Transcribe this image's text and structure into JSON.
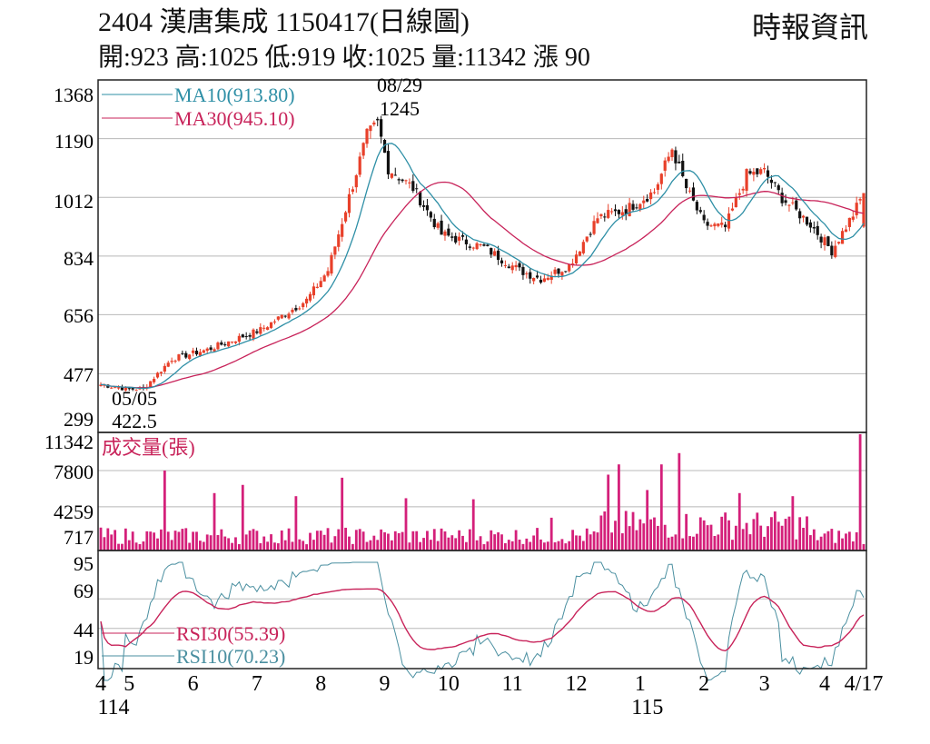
{
  "header": {
    "title": "2404  漢唐集成 1150417(日線圖)",
    "source": "時報資訊",
    "ohlc": "開:923 高:1025 低:919 收:1025 量:11342 漲 90"
  },
  "colors": {
    "up": "#e8402a",
    "down": "#111111",
    "ma10": "#2e8fa6",
    "ma30": "#c8235a",
    "volume": "#d4207a",
    "rsi10": "#4a8fa0",
    "rsi30": "#c8235a",
    "grid": "#b8b8b8"
  },
  "chart_data": [
    {
      "type": "candlestick",
      "panel": "price",
      "yticks": [
        "1368",
        "1190",
        "1012",
        "834",
        "656",
        "477",
        "299"
      ],
      "ylim": [
        299,
        1368
      ],
      "grid": true,
      "legend": [
        "MA10(913.80)",
        "MA30(945.10)"
      ],
      "annotations": [
        {
          "date": "08/29",
          "value": "1245",
          "label_lines": [
            "08/29",
            "1245"
          ]
        },
        {
          "date": "05/05",
          "value": "422.5",
          "label_lines": [
            "05/05",
            "422.5"
          ]
        }
      ],
      "anchors": [
        [
          0,
          444
        ],
        [
          8,
          430
        ],
        [
          12,
          432
        ],
        [
          20,
          522
        ],
        [
          30,
          550
        ],
        [
          45,
          610
        ],
        [
          58,
          700
        ],
        [
          64,
          790
        ],
        [
          71,
          1050
        ],
        [
          75,
          1200
        ],
        [
          78,
          1235
        ],
        [
          81,
          1100
        ],
        [
          88,
          1040
        ],
        [
          96,
          900
        ],
        [
          108,
          860
        ],
        [
          118,
          790
        ],
        [
          124,
          765
        ],
        [
          132,
          805
        ],
        [
          140,
          950
        ],
        [
          148,
          975
        ],
        [
          156,
          1030
        ],
        [
          161,
          1160
        ],
        [
          165,
          1040
        ],
        [
          170,
          930
        ],
        [
          176,
          920
        ],
        [
          182,
          1080
        ],
        [
          187,
          1090
        ],
        [
          192,
          1010
        ],
        [
          200,
          930
        ],
        [
          206,
          850
        ],
        [
          212,
          960
        ],
        [
          215,
          1025
        ]
      ],
      "series": [
        {
          "name": "MA10(913.80)",
          "last": 913.8
        },
        {
          "name": "MA30(945.10)",
          "last": 945.1
        }
      ],
      "last_candle": {
        "open": 923,
        "high": 1025,
        "low": 919,
        "close": 1025
      }
    },
    {
      "type": "bar",
      "panel": "volume",
      "title": "成交量(張)",
      "yticks": [
        "11342",
        "7800",
        "4259",
        "717"
      ],
      "ylim": [
        0,
        11342
      ],
      "spikes": [
        [
          18,
          7800
        ],
        [
          32,
          5600
        ],
        [
          40,
          6400
        ],
        [
          55,
          5300
        ],
        [
          68,
          7100
        ],
        [
          86,
          5100
        ],
        [
          105,
          5000
        ],
        [
          127,
          3200
        ],
        [
          143,
          7400
        ],
        [
          146,
          8400
        ],
        [
          154,
          5900
        ],
        [
          158,
          8400
        ],
        [
          163,
          9500
        ],
        [
          180,
          5600
        ],
        [
          195,
          5300
        ],
        [
          214,
          11342
        ]
      ]
    },
    {
      "type": "line",
      "panel": "rsi",
      "yticks": [
        "95",
        "69",
        "44",
        "19"
      ],
      "ylim": [
        19,
        95
      ],
      "series": [
        {
          "name": "RSI30(55.39)",
          "last": 55.39
        },
        {
          "name": "RSI10(70.23)",
          "last": 70.23
        }
      ]
    }
  ],
  "xaxis": {
    "labels": [
      "4",
      "5",
      "6",
      "7",
      "8",
      "9",
      "10",
      "11",
      "12",
      "1",
      "2",
      "3",
      "4",
      "4/17"
    ],
    "label_index": [
      0,
      8,
      26,
      44,
      62,
      80,
      98,
      116,
      134,
      152,
      170,
      187,
      204,
      215
    ],
    "year_labels": [
      {
        "text": "114",
        "index": 0
      },
      {
        "text": "115",
        "index": 152
      }
    ]
  }
}
